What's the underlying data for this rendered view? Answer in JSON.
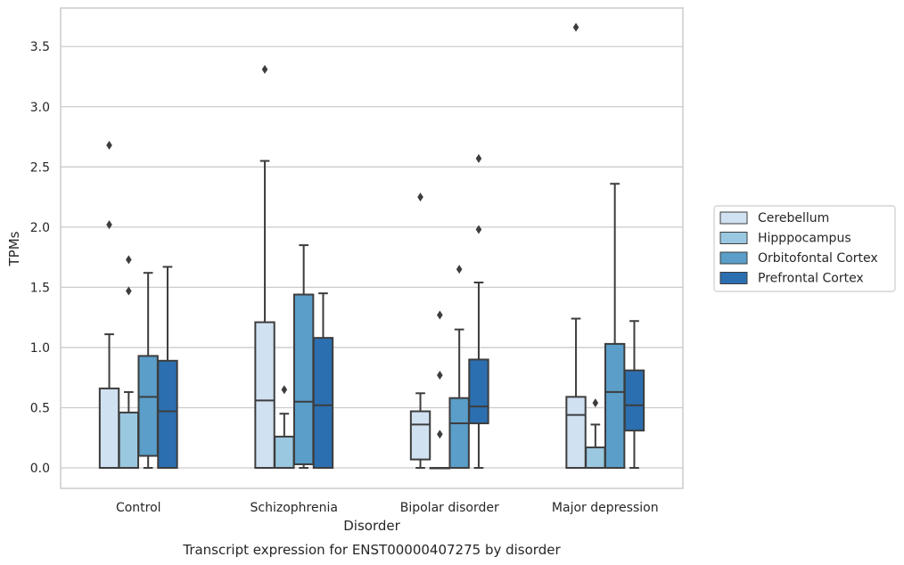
{
  "chart_data": {
    "type": "box",
    "title": "Transcript expression for ENST00000407275 by disorder",
    "xlabel": "Disorder",
    "ylabel": "TPMs",
    "ylim": [
      -0.17,
      3.82
    ],
    "yticks": [
      "0.0",
      "0.5",
      "1.0",
      "1.5",
      "2.0",
      "2.5",
      "3.0",
      "3.5"
    ],
    "grid": true,
    "legend_position": "right",
    "categories": [
      "Control",
      "Schizophrenia",
      "Bipolar disorder",
      "Major depression"
    ],
    "series": [
      {
        "name": "Cerebellum",
        "color": "#d0e1f2",
        "boxes": [
          {
            "whislo": 0.0,
            "q1": 0.0,
            "med": 0.0,
            "q3": 0.66,
            "whishi": 1.11,
            "fliers": [
              2.68,
              2.02
            ]
          },
          {
            "whislo": 0.0,
            "q1": 0.0,
            "med": 0.56,
            "q3": 1.21,
            "whishi": 2.55,
            "fliers": [
              3.31
            ]
          },
          {
            "whislo": 0.0,
            "q1": 0.07,
            "med": 0.36,
            "q3": 0.47,
            "whishi": 0.62,
            "fliers": [
              2.25
            ]
          },
          {
            "whislo": 0.0,
            "q1": 0.0,
            "med": 0.44,
            "q3": 0.59,
            "whishi": 1.24,
            "fliers": [
              3.66
            ]
          }
        ]
      },
      {
        "name": "Hipppocampus",
        "color": "#9ac8e0",
        "boxes": [
          {
            "whislo": 0.0,
            "q1": 0.0,
            "med": 0.0,
            "q3": 0.46,
            "whishi": 0.63,
            "fliers": [
              1.73,
              1.47
            ]
          },
          {
            "whislo": 0.0,
            "q1": 0.0,
            "med": 0.0,
            "q3": 0.26,
            "whishi": 0.45,
            "fliers": [
              0.65
            ]
          },
          {
            "whislo": 0.0,
            "q1": 0.0,
            "med": 0.0,
            "q3": 0.0,
            "whishi": 0.0,
            "fliers": [
              1.27,
              0.77,
              0.28
            ]
          },
          {
            "whislo": 0.0,
            "q1": 0.0,
            "med": 0.0,
            "q3": 0.17,
            "whishi": 0.36,
            "fliers": [
              0.54
            ]
          }
        ]
      },
      {
        "name": "Orbitofontal Cortex",
        "color": "#5a9ec9",
        "boxes": [
          {
            "whislo": 0.0,
            "q1": 0.1,
            "med": 0.59,
            "q3": 0.93,
            "whishi": 1.62,
            "fliers": []
          },
          {
            "whislo": 0.0,
            "q1": 0.03,
            "med": 0.55,
            "q3": 1.44,
            "whishi": 1.85,
            "fliers": []
          },
          {
            "whislo": 0.0,
            "q1": 0.0,
            "med": 0.37,
            "q3": 0.58,
            "whishi": 1.15,
            "fliers": [
              1.65
            ]
          },
          {
            "whislo": 0.0,
            "q1": 0.0,
            "med": 0.63,
            "q3": 1.03,
            "whishi": 2.36,
            "fliers": []
          }
        ]
      },
      {
        "name": "Prefrontal Cortex",
        "color": "#2b6fb0",
        "boxes": [
          {
            "whislo": 0.0,
            "q1": 0.0,
            "med": 0.47,
            "q3": 0.89,
            "whishi": 1.67,
            "fliers": []
          },
          {
            "whislo": 0.0,
            "q1": 0.0,
            "med": 0.52,
            "q3": 1.08,
            "whishi": 1.45,
            "fliers": []
          },
          {
            "whislo": 0.0,
            "q1": 0.37,
            "med": 0.51,
            "q3": 0.9,
            "whishi": 1.54,
            "fliers": [
              2.57,
              1.98
            ]
          },
          {
            "whislo": 0.0,
            "q1": 0.31,
            "med": 0.52,
            "q3": 0.81,
            "whishi": 1.22,
            "fliers": []
          }
        ]
      }
    ]
  }
}
